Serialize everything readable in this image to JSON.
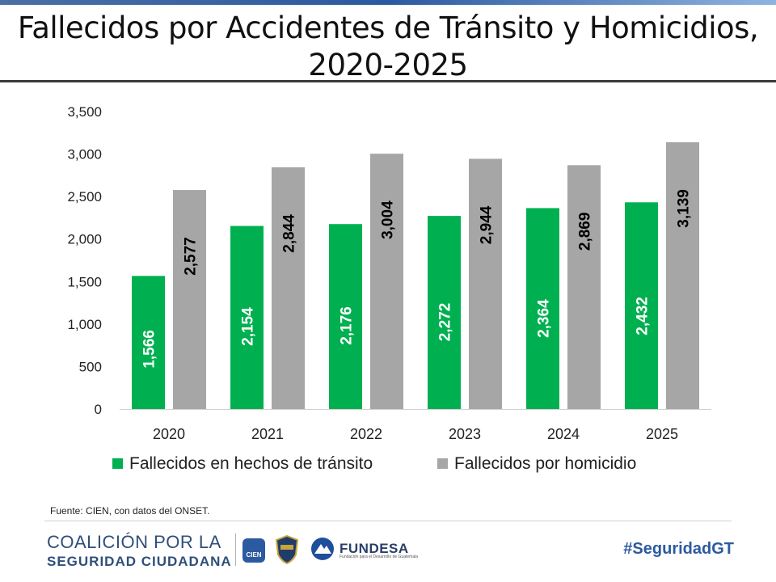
{
  "page": {
    "title": "Fallecidos por Accidentes de Tránsito y Homicidios, 2020-2025",
    "source": "Fuente: CIEN, con datos del ONSET.",
    "footer": {
      "brand_line1": "COALICIÓN POR LA",
      "brand_line2": "SEGURIDAD CIUDADANA",
      "logo_cien": "CIEN",
      "logo_fundesa": "FUNDESA",
      "logo_fundesa_sub": "Fundación para el Desarrollo de Guatemala",
      "hashtag": "#SeguridadGT"
    }
  },
  "chart_data": {
    "type": "bar",
    "title": "Fallecidos por Accidentes de Tránsito y Homicidios, 2020-2025",
    "xlabel": "",
    "ylabel": "",
    "categories": [
      "2020",
      "2021",
      "2022",
      "2023",
      "2024",
      "2025"
    ],
    "series": [
      {
        "name": "Fallecidos en hechos de tránsito",
        "values": [
          1566,
          2154,
          2176,
          2272,
          2364,
          2432
        ],
        "labels": [
          "1,566",
          "2,154",
          "2,176",
          "2,272",
          "2,364",
          "2,432"
        ],
        "color": "#00b050",
        "label_color": "#ffffff"
      },
      {
        "name": "Fallecidos por homicidio",
        "values": [
          2577,
          2844,
          3004,
          2944,
          2869,
          3139
        ],
        "labels": [
          "2,577",
          "2,844",
          "3,004",
          "2,944",
          "2,869",
          "3,139"
        ],
        "color": "#a6a6a6",
        "label_color": "#000000"
      }
    ],
    "ylim": [
      0,
      3500
    ],
    "yticks": [
      0,
      500,
      1000,
      1500,
      2000,
      2500,
      3000,
      3500
    ],
    "ytick_labels": [
      "0",
      "500",
      "1,000",
      "1,500",
      "2,000",
      "2,500",
      "3,000",
      "3,500"
    ],
    "grid": false,
    "legend_position": "bottom"
  }
}
